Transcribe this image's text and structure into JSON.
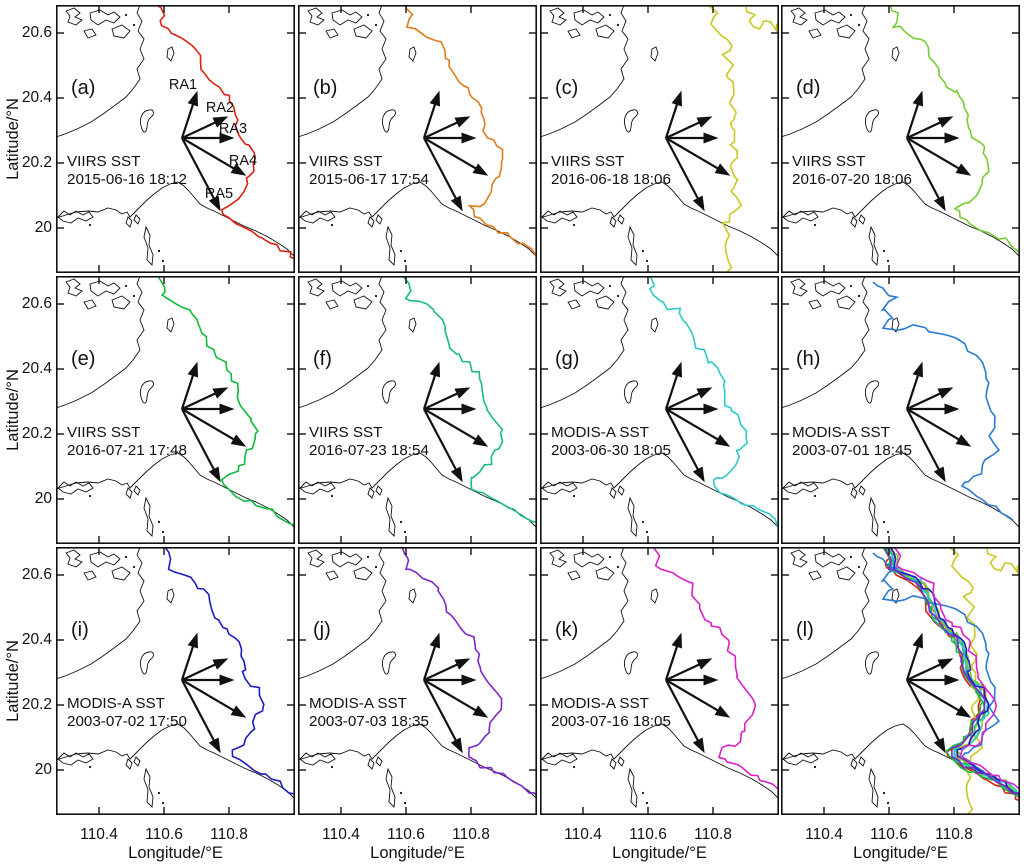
{
  "figure": {
    "xlabel": "Longitude/°E",
    "ylabel": "Latitude/°N",
    "x_tick_labels": [
      "110.4",
      "110.6",
      "110.8"
    ],
    "y_tick_labels": [
      "20.6",
      "20.4",
      "20.2",
      "20"
    ],
    "coast_color": "#111111",
    "arrow_color": "#111111"
  },
  "ray_labels": [
    "RA1",
    "RA2",
    "RA3",
    "RA4",
    "RA5"
  ],
  "panels": [
    {
      "id": "a",
      "label": "(a)",
      "satellite": "VIIRS SST",
      "datetime": "2015-06-16 18:12",
      "contour_color": "#dd2214",
      "show_ray_labels": true,
      "overlay": false
    },
    {
      "id": "b",
      "label": "(b)",
      "satellite": "VIIRS SST",
      "datetime": "2015-06-17 17:54",
      "contour_color": "#e07b1a",
      "show_ray_labels": false,
      "overlay": false
    },
    {
      "id": "c",
      "label": "(c)",
      "satellite": "VIIRS SST",
      "datetime": "2016-06-18 18:06",
      "contour_color": "#c9c922",
      "show_ray_labels": false,
      "overlay": false
    },
    {
      "id": "d",
      "label": "(d)",
      "satellite": "VIIRS SST",
      "datetime": "2016-07-20 18:06",
      "contour_color": "#77cc33",
      "show_ray_labels": false,
      "overlay": false
    },
    {
      "id": "e",
      "label": "(e)",
      "satellite": "VIIRS SST",
      "datetime": "2016-07-21 17:48",
      "contour_color": "#12b93e",
      "show_ray_labels": false,
      "overlay": false
    },
    {
      "id": "f",
      "label": "(f)",
      "satellite": "VIIRS SST",
      "datetime": "2016-07-23 18:54",
      "contour_color": "#17bd7a",
      "show_ray_labels": false,
      "overlay": false
    },
    {
      "id": "g",
      "label": "(g)",
      "satellite": "MODIS-A SST",
      "datetime": "2003-06-30 18:05",
      "contour_color": "#2ec9c9",
      "show_ray_labels": false,
      "overlay": false
    },
    {
      "id": "h",
      "label": "(h)",
      "satellite": "MODIS-A SST",
      "datetime": "2003-07-01 18:45",
      "contour_color": "#2b7ad0",
      "show_ray_labels": false,
      "overlay": false
    },
    {
      "id": "i",
      "label": "(i)",
      "satellite": "MODIS-A SST",
      "datetime": "2003-07-02 17:50",
      "contour_color": "#1c1cc4",
      "show_ray_labels": false,
      "overlay": false
    },
    {
      "id": "j",
      "label": "(j)",
      "satellite": "MODIS-A SST",
      "datetime": "2003-07-03 18:35",
      "contour_color": "#7d28cc",
      "show_ray_labels": false,
      "overlay": false
    },
    {
      "id": "k",
      "label": "(k)",
      "satellite": "MODIS-A SST",
      "datetime": "2003-07-16 18:05",
      "contour_color": "#d922c6",
      "show_ray_labels": false,
      "overlay": false
    },
    {
      "id": "l",
      "label": "(l)",
      "satellite": "",
      "datetime": "",
      "contour_color": "",
      "show_ray_labels": false,
      "overlay": true
    }
  ],
  "chart_data": {
    "type": "line",
    "subtype": "multi-panel map of SST front contours with radial analysis rays",
    "grid_rows": 3,
    "grid_cols": 4,
    "xlabel": "Longitude/°E",
    "ylabel": "Latitude/°N",
    "xlim": [
      110.27,
      111.01
    ],
    "ylim": [
      19.87,
      20.69
    ],
    "x_ticks": [
      110.4,
      110.6,
      110.8
    ],
    "y_ticks": [
      20,
      20.2,
      20.4,
      20.6
    ],
    "grid": false,
    "ray_labels_panel_a": [
      "RA1",
      "RA2",
      "RA3",
      "RA4",
      "RA5"
    ],
    "ray_origin": [
      110.65,
      20.29
    ],
    "panels": [
      {
        "label": "(a)",
        "satellite": "VIIRS SST",
        "datetime": "2015-06-16 18:12",
        "contour_color": "#dd2214"
      },
      {
        "label": "(b)",
        "satellite": "VIIRS SST",
        "datetime": "2015-06-17 17:54",
        "contour_color": "#e07b1a"
      },
      {
        "label": "(c)",
        "satellite": "VIIRS SST",
        "datetime": "2016-06-18 18:06",
        "contour_color": "#c9c922"
      },
      {
        "label": "(d)",
        "satellite": "VIIRS SST",
        "datetime": "2016-07-20 18:06",
        "contour_color": "#77cc33"
      },
      {
        "label": "(e)",
        "satellite": "VIIRS SST",
        "datetime": "2016-07-21 17:48",
        "contour_color": "#12b93e"
      },
      {
        "label": "(f)",
        "satellite": "VIIRS SST",
        "datetime": "2016-07-23 18:54",
        "contour_color": "#17bd7a"
      },
      {
        "label": "(g)",
        "satellite": "MODIS-A SST",
        "datetime": "2003-06-30 18:05",
        "contour_color": "#2ec9c9"
      },
      {
        "label": "(h)",
        "satellite": "MODIS-A SST",
        "datetime": "2003-07-01 18:45",
        "contour_color": "#2b7ad0"
      },
      {
        "label": "(i)",
        "satellite": "MODIS-A SST",
        "datetime": "2003-07-02 17:50",
        "contour_color": "#1c1cc4"
      },
      {
        "label": "(j)",
        "satellite": "MODIS-A SST",
        "datetime": "2003-07-03 18:35",
        "contour_color": "#7d28cc"
      },
      {
        "label": "(k)",
        "satellite": "MODIS-A SST",
        "datetime": "2003-07-16 18:05",
        "contour_color": "#d922c6"
      },
      {
        "label": "(l)",
        "satellite": "",
        "datetime": "",
        "contour_color": "",
        "description": "overlay of all SST front contours from panels (a)-(k)"
      }
    ]
  }
}
